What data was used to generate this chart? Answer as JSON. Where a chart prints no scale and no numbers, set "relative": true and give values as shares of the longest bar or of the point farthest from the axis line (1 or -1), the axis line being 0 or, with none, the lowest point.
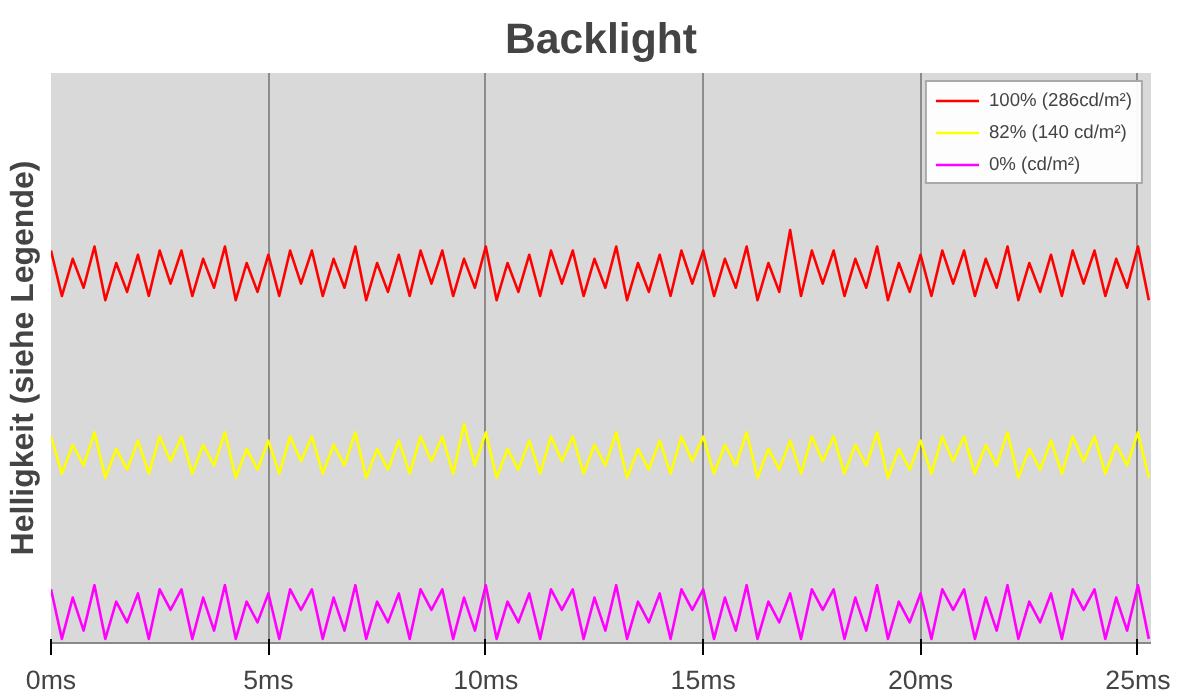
{
  "chart_data": {
    "type": "line",
    "title": "Backlight",
    "ylabel": "Helligkeit (siehe Legende)",
    "relative": true,
    "x": [
      0,
      0.25,
      0.5,
      0.75,
      1,
      1.25,
      1.5,
      1.75,
      2,
      2.25,
      2.5,
      2.75,
      3,
      3.25,
      3.5,
      3.75,
      4,
      4.25,
      4.5,
      4.75,
      5,
      5.25,
      5.5,
      5.75,
      6,
      6.25,
      6.5,
      6.75,
      7,
      7.25,
      7.5,
      7.75,
      8,
      8.25,
      8.5,
      8.75,
      9,
      9.25,
      9.5,
      9.75,
      10,
      10.25,
      10.5,
      10.75,
      11,
      11.25,
      11.5,
      11.75,
      12,
      12.25,
      12.5,
      12.75,
      13,
      13.25,
      13.5,
      13.75,
      14,
      14.25,
      14.5,
      14.75,
      15,
      15.25,
      15.5,
      15.75,
      16,
      16.25,
      16.5,
      16.75,
      17,
      17.25,
      17.5,
      17.75,
      18,
      18.25,
      18.5,
      18.75,
      19,
      19.25,
      19.5,
      19.75,
      20,
      20.25,
      20.5,
      20.75,
      21,
      21.25,
      21.5,
      21.75,
      22,
      22.25,
      22.5,
      22.75,
      23,
      23.25,
      23.5,
      23.75,
      24,
      24.25,
      24.5,
      24.75,
      25,
      25.25
    ],
    "xlim": [
      0,
      25.3
    ],
    "xticks": [
      {
        "value": 0,
        "label": "0ms"
      },
      {
        "value": 5,
        "label": "5ms"
      },
      {
        "value": 10,
        "label": "10ms"
      },
      {
        "value": 15,
        "label": "15ms"
      },
      {
        "value": 20,
        "label": "20ms"
      },
      {
        "value": 25,
        "label": "25ms"
      }
    ],
    "grid": "x",
    "legend": "top right",
    "marker": "none",
    "line_style": "solid",
    "series": [
      {
        "name": "100% (286cd/m²)",
        "color": "#ff0000",
        "values": [
          0.95,
          0.84,
          0.93,
          0.86,
          0.96,
          0.83,
          0.92,
          0.85,
          0.94,
          0.84,
          0.95,
          0.87,
          0.95,
          0.84,
          0.93,
          0.86,
          0.96,
          0.83,
          0.92,
          0.85,
          0.94,
          0.84,
          0.95,
          0.87,
          0.95,
          0.84,
          0.93,
          0.86,
          0.96,
          0.83,
          0.92,
          0.85,
          0.94,
          0.84,
          0.95,
          0.87,
          0.95,
          0.84,
          0.93,
          0.86,
          0.96,
          0.83,
          0.92,
          0.85,
          0.94,
          0.84,
          0.95,
          0.87,
          0.95,
          0.84,
          0.93,
          0.86,
          0.96,
          0.83,
          0.92,
          0.85,
          0.94,
          0.84,
          0.95,
          0.87,
          0.95,
          0.84,
          0.93,
          0.86,
          0.96,
          0.83,
          0.92,
          0.85,
          1.0,
          0.84,
          0.95,
          0.87,
          0.95,
          0.84,
          0.93,
          0.86,
          0.96,
          0.83,
          0.92,
          0.85,
          0.94,
          0.84,
          0.95,
          0.87,
          0.95,
          0.84,
          0.93,
          0.86,
          0.96,
          0.83,
          0.92,
          0.85,
          0.94,
          0.84,
          0.95,
          0.87,
          0.95,
          0.84,
          0.93,
          0.86,
          0.96,
          0.83
        ]
      },
      {
        "name": "82% (140 cd/m²)",
        "color": "#ffff00",
        "values": [
          0.5,
          0.41,
          0.48,
          0.43,
          0.51,
          0.4,
          0.47,
          0.42,
          0.49,
          0.41,
          0.5,
          0.44,
          0.5,
          0.41,
          0.48,
          0.43,
          0.51,
          0.4,
          0.47,
          0.42,
          0.49,
          0.41,
          0.5,
          0.44,
          0.5,
          0.41,
          0.48,
          0.43,
          0.51,
          0.4,
          0.47,
          0.42,
          0.49,
          0.41,
          0.5,
          0.44,
          0.5,
          0.41,
          0.53,
          0.43,
          0.51,
          0.4,
          0.47,
          0.42,
          0.49,
          0.41,
          0.5,
          0.44,
          0.5,
          0.41,
          0.48,
          0.43,
          0.51,
          0.4,
          0.47,
          0.42,
          0.49,
          0.41,
          0.5,
          0.44,
          0.5,
          0.41,
          0.48,
          0.43,
          0.51,
          0.4,
          0.47,
          0.42,
          0.49,
          0.41,
          0.5,
          0.44,
          0.5,
          0.41,
          0.48,
          0.43,
          0.51,
          0.4,
          0.47,
          0.42,
          0.49,
          0.41,
          0.5,
          0.44,
          0.5,
          0.41,
          0.48,
          0.43,
          0.51,
          0.4,
          0.47,
          0.42,
          0.49,
          0.41,
          0.5,
          0.44,
          0.5,
          0.41,
          0.48,
          0.43,
          0.51,
          0.4
        ]
      },
      {
        "name": "0% (cd/m²)",
        "color": "#ff00ff",
        "values": [
          0.13,
          0.01,
          0.11,
          0.03,
          0.14,
          0.01,
          0.1,
          0.05,
          0.12,
          0.01,
          0.13,
          0.08,
          0.13,
          0.01,
          0.11,
          0.03,
          0.14,
          0.01,
          0.1,
          0.05,
          0.12,
          0.01,
          0.13,
          0.08,
          0.13,
          0.01,
          0.11,
          0.03,
          0.14,
          0.01,
          0.1,
          0.05,
          0.12,
          0.01,
          0.13,
          0.08,
          0.13,
          0.01,
          0.11,
          0.03,
          0.14,
          0.01,
          0.1,
          0.05,
          0.12,
          0.01,
          0.13,
          0.08,
          0.13,
          0.01,
          0.11,
          0.03,
          0.14,
          0.01,
          0.1,
          0.05,
          0.12,
          0.01,
          0.13,
          0.08,
          0.13,
          0.01,
          0.11,
          0.03,
          0.14,
          0.01,
          0.1,
          0.05,
          0.12,
          0.01,
          0.13,
          0.08,
          0.13,
          0.01,
          0.11,
          0.03,
          0.14,
          0.01,
          0.1,
          0.05,
          0.12,
          0.01,
          0.13,
          0.08,
          0.13,
          0.01,
          0.11,
          0.03,
          0.14,
          0.01,
          0.1,
          0.05,
          0.12,
          0.01,
          0.13,
          0.08,
          0.13,
          0.01,
          0.11,
          0.03,
          0.14,
          0.01
        ]
      }
    ]
  }
}
